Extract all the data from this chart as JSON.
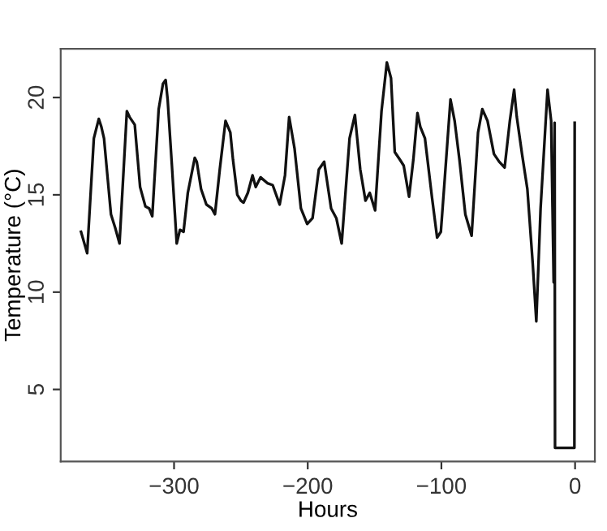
{
  "chart_data": {
    "type": "line",
    "xlabel": "Hours",
    "ylabel": "Temperature (°C)",
    "xlim": [
      -384.8,
      14.8
    ],
    "ylim": [
      1.3,
      22.5
    ],
    "xticks": [
      -300,
      -200,
      -100,
      0
    ],
    "yticks": [
      5,
      10,
      15,
      20
    ],
    "grid": false,
    "marker": "none",
    "line_style": "solid",
    "series": [
      {
        "color": "#111111",
        "x": [
          -369.6,
          -365,
          -360,
          -356.3,
          -354.4,
          -352.4,
          -347.2,
          -344,
          -340.8,
          -335.3,
          -333.3,
          -329.4,
          -325.4,
          -321.4,
          -318.6,
          -316.3,
          -311.5,
          -308.3,
          -306.3,
          -304.8,
          -301.6,
          -298,
          -295.6,
          -292.9,
          -289.7,
          -284.5,
          -283,
          -279.8,
          -275.8,
          -271.8,
          -269.4,
          -265.8,
          -261.5,
          -257.9,
          -255.9,
          -252.7,
          -250,
          -248,
          -244.8,
          -241.3,
          -238.9,
          -235.3,
          -230.2,
          -226.2,
          -221,
          -217,
          -213.9,
          -209.9,
          -205.1,
          -200.4,
          -196.4,
          -191.7,
          -187.7,
          -182.5,
          -178.6,
          -174.6,
          -168.7,
          -164.7,
          -160.7,
          -156.8,
          -153.6,
          -149.6,
          -144.8,
          -140.8,
          -137.7,
          -134.9,
          -131,
          -128.2,
          -124.2,
          -121,
          -117.9,
          -115.8,
          -112.3,
          -107.1,
          -103.2,
          -100.4,
          -97.3,
          -93.2,
          -90.1,
          -86.5,
          -82.1,
          -77.4,
          -72.6,
          -69.4,
          -65.5,
          -60.7,
          -56.8,
          -52.7,
          -48.8,
          -45.6,
          -43.6,
          -39.7,
          -35.7,
          -31.7,
          -29,
          -25.8,
          -20.6,
          -17.9,
          -16,
          -15.3,
          -15,
          -0.5,
          -0.3
        ],
        "values": [
          13.1,
          12.0,
          17.9,
          18.9,
          18.5,
          17.9,
          14.0,
          13.3,
          12.5,
          19.3,
          19.0,
          18.6,
          15.4,
          14.4,
          14.3,
          13.9,
          19.4,
          20.7,
          20.9,
          19.9,
          16.5,
          12.5,
          13.2,
          13.1,
          15.1,
          16.9,
          16.7,
          15.3,
          14.5,
          14.3,
          14.0,
          16.3,
          18.8,
          18.2,
          16.8,
          15.0,
          14.7,
          14.6,
          15.1,
          16.0,
          15.4,
          15.9,
          15.6,
          15.5,
          14.5,
          16.0,
          19.0,
          17.4,
          14.3,
          13.5,
          13.8,
          16.3,
          16.7,
          14.3,
          13.8,
          12.5,
          17.9,
          19.1,
          16.3,
          14.7,
          15.1,
          14.2,
          19.3,
          21.8,
          21.0,
          17.2,
          16.8,
          16.5,
          14.9,
          16.8,
          19.2,
          18.5,
          17.9,
          14.9,
          12.8,
          13.1,
          16.0,
          19.9,
          18.8,
          16.8,
          14.0,
          12.9,
          18.2,
          19.4,
          18.8,
          17.1,
          16.7,
          16.4,
          18.8,
          20.4,
          19.0,
          17.1,
          15.3,
          11.5,
          8.5,
          14.3,
          20.4,
          18.8,
          10.5,
          18.7,
          2.0,
          2.0,
          18.7
        ]
      }
    ]
  }
}
